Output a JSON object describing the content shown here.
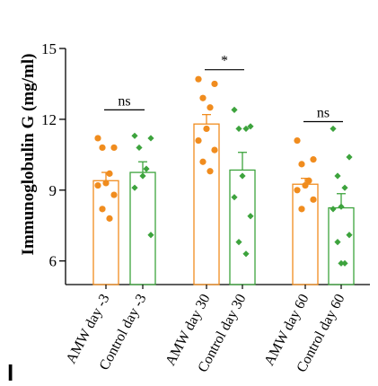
{
  "panel_label": "I",
  "chart_data": {
    "type": "bar",
    "ylabel": "Immunoglobulin G (mg/ml)",
    "ylim": [
      5,
      15
    ],
    "yticks": [
      6,
      9,
      12,
      15
    ],
    "categories": [
      "AMW day -3",
      "Control day -3",
      "AMW day 30",
      "Control day 30",
      "AMW day 60",
      "Control day 60"
    ],
    "groups": [
      "AMW",
      "Control",
      "AMW",
      "Control",
      "AMW",
      "Control"
    ],
    "colors": {
      "AMW": "#f08c1e",
      "Control": "#3da33d"
    },
    "values": [
      9.4,
      9.75,
      11.8,
      9.85,
      9.25,
      8.25
    ],
    "errors": [
      0.35,
      0.45,
      0.4,
      0.75,
      0.25,
      0.6
    ],
    "points": [
      [
        11.2,
        10.8,
        10.8,
        9.7,
        9.3,
        9.2,
        8.8,
        8.2,
        7.8
      ],
      [
        11.3,
        11.2,
        10.8,
        9.9,
        9.6,
        9.1,
        7.1
      ],
      [
        13.7,
        13.5,
        12.9,
        12.5,
        11.6,
        11.1,
        10.7,
        10.2,
        9.8
      ],
      [
        12.4,
        11.7,
        11.6,
        11.6,
        9.6,
        8.7,
        7.9,
        6.8,
        6.3
      ],
      [
        11.1,
        10.3,
        10.1,
        9.4,
        9.2,
        9.0,
        8.6,
        8.2
      ],
      [
        11.6,
        10.4,
        9.6,
        9.1,
        8.3,
        8.2,
        7.1,
        6.8,
        5.9,
        5.9
      ]
    ],
    "annotations": [
      {
        "text": "ns",
        "from": 0,
        "to": 1,
        "y": 12.4
      },
      {
        "text": "*",
        "from": 2,
        "to": 3,
        "y": 14.1
      },
      {
        "text": "ns",
        "from": 4,
        "to": 5,
        "y": 11.9
      }
    ]
  }
}
